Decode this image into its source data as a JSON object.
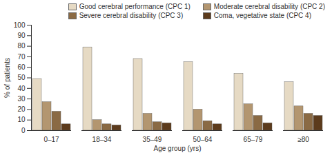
{
  "chart_data": {
    "type": "bar",
    "categories": [
      "0–17",
      "18–34",
      "35–49",
      "50–64",
      "65–79",
      "≥80"
    ],
    "series": [
      {
        "name": "Good cerebral performance (CPC 1)",
        "color": "#e6dac4",
        "values": [
          49,
          79,
          68,
          65,
          54,
          46
        ]
      },
      {
        "name": "Moderate cerebral disability (CPC 2)",
        "color": "#b39670",
        "values": [
          27,
          10,
          16,
          20,
          25,
          23
        ]
      },
      {
        "name": "Severe cerebral disability (CPC 3)",
        "color": "#8a6a44",
        "values": [
          18,
          6,
          8,
          9,
          14,
          16
        ]
      },
      {
        "name": "Coma, vegetative state (CPC 4)",
        "color": "#5c3b1c",
        "values": [
          6,
          5,
          7,
          6,
          7,
          14
        ]
      }
    ],
    "x_label": "Age group (yrs)",
    "y_label": "% of patients",
    "ylim": [
      0,
      100
    ],
    "yticks": [
      0,
      10,
      20,
      30,
      40,
      50,
      60,
      70,
      80,
      90,
      100
    ],
    "legend": "top-right",
    "grid": false
  }
}
